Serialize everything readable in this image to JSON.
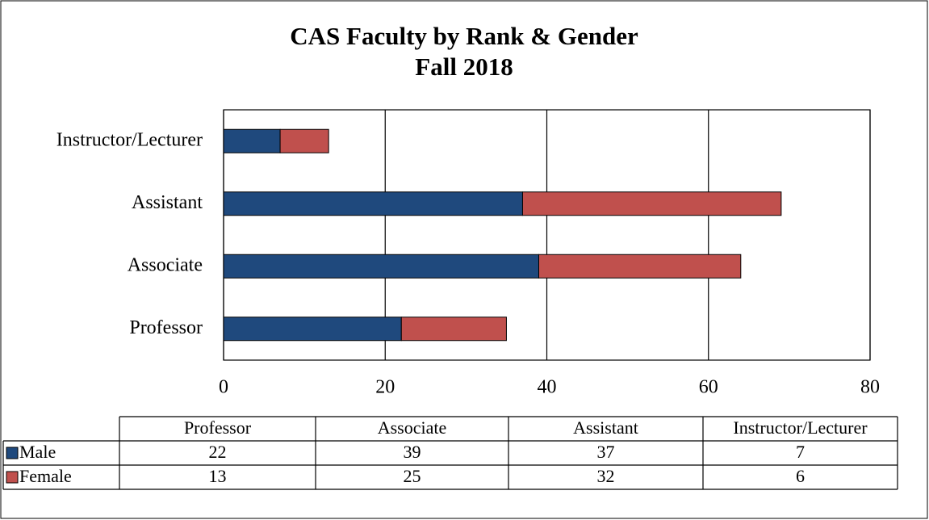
{
  "chart_data": {
    "type": "stacked_barh",
    "title": "CAS Faculty by Rank & Gender",
    "subtitle": "Fall 2018",
    "categories": [
      "Professor",
      "Associate",
      "Assistant",
      "Instructor/Lecturer"
    ],
    "series": [
      {
        "name": "Male",
        "color": "#1f497d",
        "values": [
          22,
          39,
          37,
          7
        ]
      },
      {
        "name": "Female",
        "color": "#c0504d",
        "values": [
          13,
          25,
          32,
          6
        ]
      }
    ],
    "xlim": [
      0,
      80
    ],
    "xticks": [
      0,
      20,
      40,
      60,
      80
    ],
    "grid": true,
    "data_table": true
  }
}
